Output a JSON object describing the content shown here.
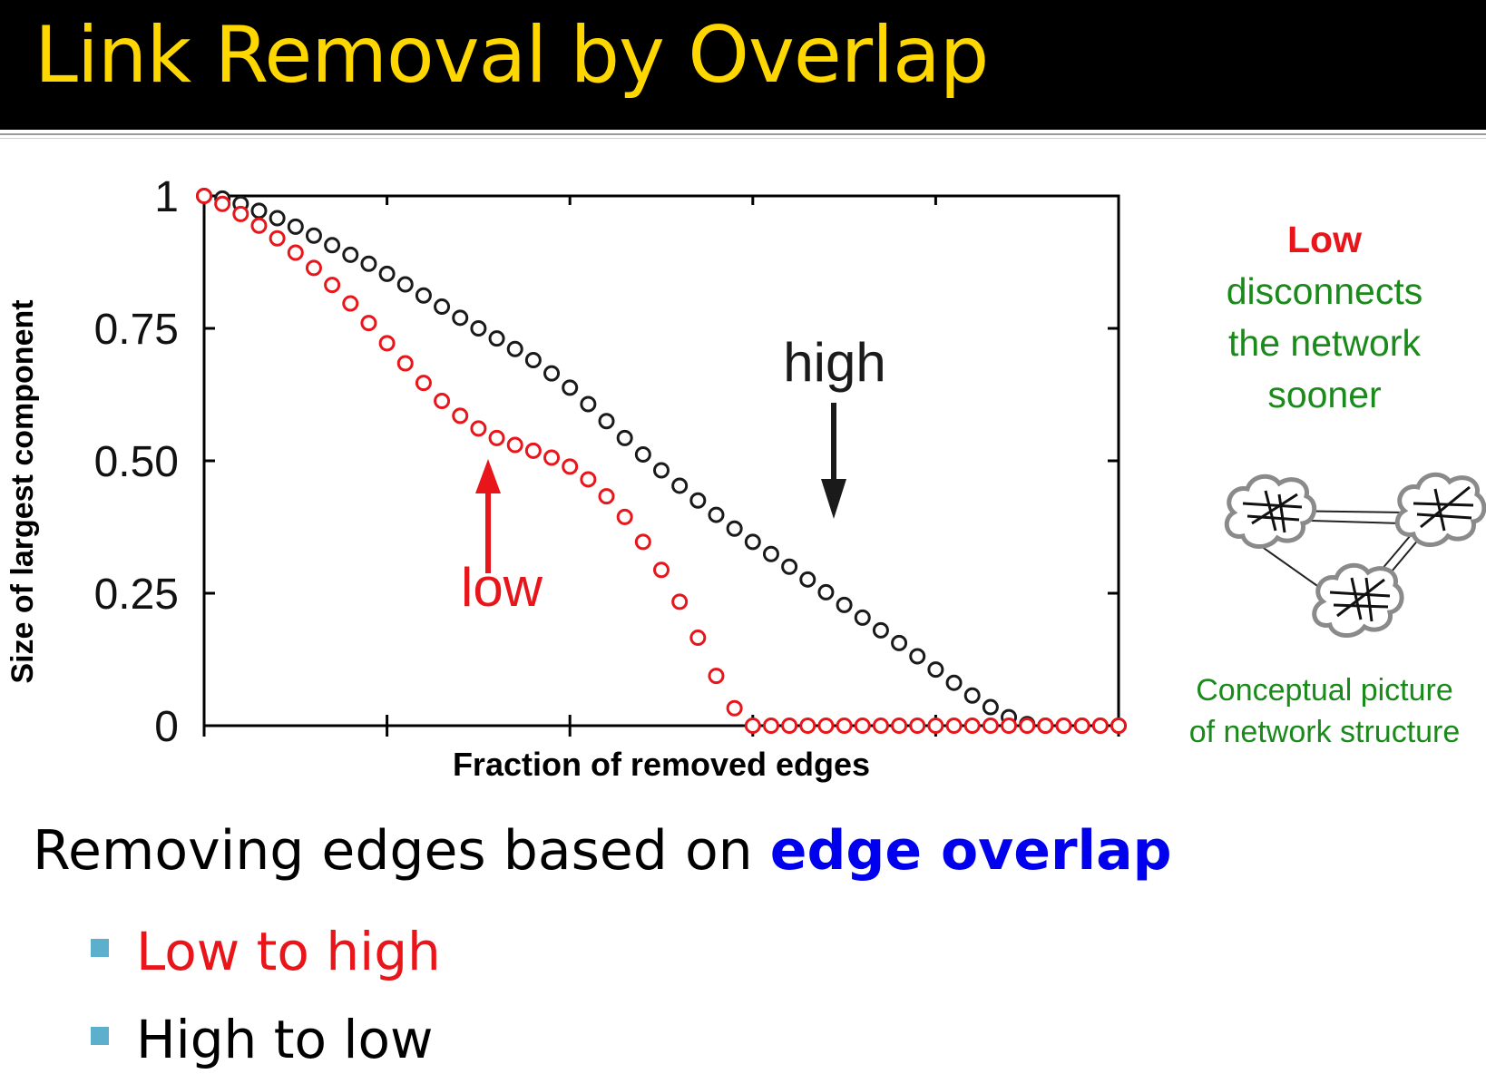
{
  "header": {
    "title": "Link Removal by Overlap"
  },
  "chart_data": {
    "type": "scatter",
    "xlabel": "Fraction of removed edges",
    "ylabel": "Size of largest component",
    "ylim": [
      0,
      1
    ],
    "xlim": [
      0,
      1
    ],
    "yticks": [
      "0",
      "0.25",
      "0.50",
      "0.75",
      "1"
    ],
    "grid": false,
    "series": [
      {
        "name": "high",
        "color": "#1a1a1a",
        "x": [
          0.0,
          0.02,
          0.04,
          0.06,
          0.08,
          0.1,
          0.12,
          0.14,
          0.16,
          0.18,
          0.2,
          0.22,
          0.24,
          0.26,
          0.28,
          0.3,
          0.32,
          0.34,
          0.36,
          0.38,
          0.4,
          0.42,
          0.44,
          0.46,
          0.48,
          0.5,
          0.52,
          0.54,
          0.56,
          0.58,
          0.6,
          0.62,
          0.64,
          0.66,
          0.68,
          0.7,
          0.72,
          0.74,
          0.76,
          0.78,
          0.8,
          0.82,
          0.84,
          0.86,
          0.88,
          0.9,
          0.92,
          0.94,
          0.96,
          0.98,
          1.0
        ],
        "y": [
          1.0,
          0.995,
          0.985,
          0.972,
          0.958,
          0.942,
          0.925,
          0.907,
          0.889,
          0.872,
          0.853,
          0.833,
          0.812,
          0.791,
          0.77,
          0.75,
          0.731,
          0.711,
          0.69,
          0.665,
          0.638,
          0.607,
          0.575,
          0.543,
          0.512,
          0.482,
          0.453,
          0.425,
          0.398,
          0.372,
          0.347,
          0.324,
          0.3,
          0.276,
          0.252,
          0.228,
          0.204,
          0.18,
          0.156,
          0.131,
          0.106,
          0.081,
          0.057,
          0.035,
          0.016,
          0.003,
          0.0,
          0.0,
          0.0,
          0.0,
          0.0
        ]
      },
      {
        "name": "low",
        "color": "#e8151a",
        "x": [
          0.0,
          0.02,
          0.04,
          0.06,
          0.08,
          0.1,
          0.12,
          0.14,
          0.16,
          0.18,
          0.2,
          0.22,
          0.24,
          0.26,
          0.28,
          0.3,
          0.32,
          0.34,
          0.36,
          0.38,
          0.4,
          0.42,
          0.44,
          0.46,
          0.48,
          0.5,
          0.52,
          0.54,
          0.56,
          0.58,
          0.6,
          0.62,
          0.64,
          0.66,
          0.68,
          0.7,
          0.72,
          0.74,
          0.76,
          0.78,
          0.8,
          0.82,
          0.84,
          0.86,
          0.88,
          0.9,
          0.92,
          0.94,
          0.96,
          0.98,
          1.0
        ],
        "y": [
          1.0,
          0.985,
          0.966,
          0.944,
          0.92,
          0.893,
          0.864,
          0.832,
          0.797,
          0.76,
          0.722,
          0.684,
          0.647,
          0.613,
          0.585,
          0.561,
          0.543,
          0.53,
          0.519,
          0.506,
          0.489,
          0.465,
          0.433,
          0.394,
          0.347,
          0.294,
          0.234,
          0.166,
          0.094,
          0.033,
          0.0,
          0.0,
          0.0,
          0.0,
          0.0,
          0.0,
          0.0,
          0.0,
          0.0,
          0.0,
          0.0,
          0.0,
          0.0,
          0.0,
          0.0,
          0.0,
          0.0,
          0.0,
          0.0,
          0.0,
          0.0
        ]
      }
    ],
    "annotations": [
      {
        "text": "high",
        "color": "#1a1a1a"
      },
      {
        "text": "low",
        "color": "#e8151a"
      }
    ]
  },
  "side_note": {
    "line1": "Low",
    "line2": "disconnects",
    "line3": "the network",
    "line4": "sooner"
  },
  "concept_caption": {
    "line1": "Conceptual picture",
    "line2": "of network structure"
  },
  "main_text": {
    "prefix": "Removing edges based on ",
    "highlight": "edge overlap"
  },
  "bullets": [
    {
      "label": "Low to high",
      "color": "#e8151a"
    },
    {
      "label": "High to low",
      "color": "#000000"
    }
  ]
}
